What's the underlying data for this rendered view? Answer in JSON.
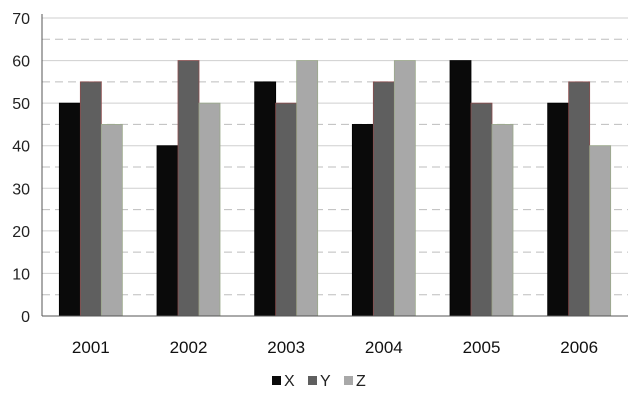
{
  "chart_data": {
    "type": "bar",
    "categories": [
      "2001",
      "2002",
      "2003",
      "2004",
      "2005",
      "2006"
    ],
    "series": [
      {
        "name": "X",
        "values": [
          50,
          40,
          55,
          45,
          60,
          50
        ],
        "color": "#0a0a0a"
      },
      {
        "name": "Y",
        "values": [
          55,
          60,
          50,
          55,
          50,
          55
        ],
        "color": "#5f5f5f"
      },
      {
        "name": "Z",
        "values": [
          45,
          50,
          60,
          60,
          45,
          40
        ],
        "color": "#a8a8a8"
      }
    ],
    "ylim": [
      0,
      70
    ],
    "yticks": [
      0,
      10,
      20,
      30,
      40,
      50,
      60,
      70
    ],
    "grid": true,
    "legend": "bottom"
  }
}
